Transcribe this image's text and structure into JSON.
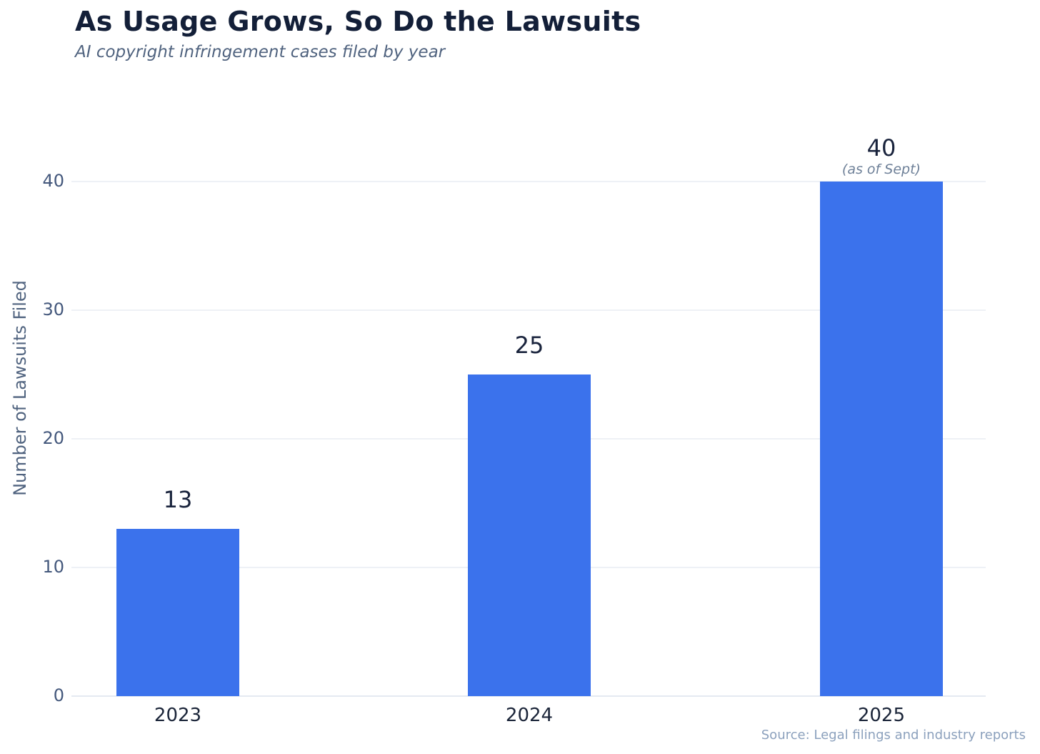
{
  "chart_data": {
    "type": "bar",
    "title": "As Usage Grows, So Do the Lawsuits",
    "subtitle": "AI copyright infringement cases filed by year",
    "xlabel": "",
    "ylabel": "Number of Lawsuits Filed",
    "categories": [
      "2023",
      "2024",
      "2025"
    ],
    "values": [
      13,
      25,
      40
    ],
    "value_labels": [
      "13",
      "25",
      "40"
    ],
    "annotations": [
      {
        "category": "2025",
        "text": "(as of Sept)"
      }
    ],
    "ylim": [
      0,
      40
    ],
    "yticks": [
      0,
      10,
      20,
      30,
      40
    ],
    "grid": "horizontal",
    "legend": "none",
    "bar_color": "#3b72ec",
    "source": "Source: Legal filings and industry reports"
  },
  "colors": {
    "title": "#131f38",
    "subtitle": "#50637f",
    "ytick": "#44587c",
    "xtick": "#1b2539",
    "value_label": "#19233c",
    "annotation": "#6e8098",
    "source": "#8ca1bd",
    "gridline": "#eef1f6",
    "background": "#ffffff"
  }
}
